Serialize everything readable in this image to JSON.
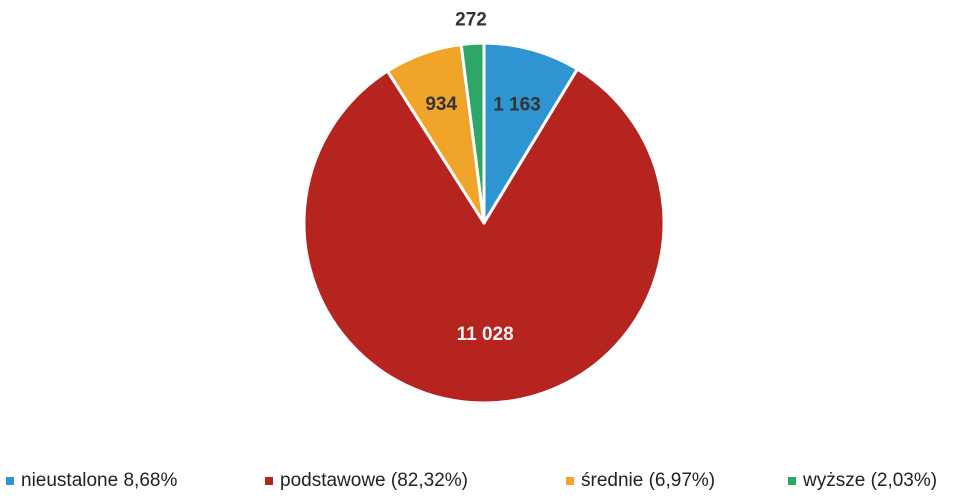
{
  "chart_data": {
    "type": "pie",
    "categories": [
      "nieustalone",
      "podstawowe",
      "średnie",
      "wyższe"
    ],
    "values": [
      1163,
      11028,
      934,
      272
    ],
    "value_labels": [
      "1 163",
      "11 028",
      "934",
      "272"
    ],
    "colors": [
      "#2f95d2",
      "#b5241f",
      "#f0a52a",
      "#2ea667"
    ],
    "label_colors": [
      "#333333",
      "#f2f2f2",
      "#333333",
      "#333333"
    ],
    "start_angle_deg": 0,
    "direction": "clockwise",
    "legend": {
      "position": "bottom",
      "entries": [
        "nieustalone 8,68%",
        "podstawowe (82,32%)",
        "średnie (6,97%)",
        "wyższe (2,03%)"
      ]
    }
  }
}
